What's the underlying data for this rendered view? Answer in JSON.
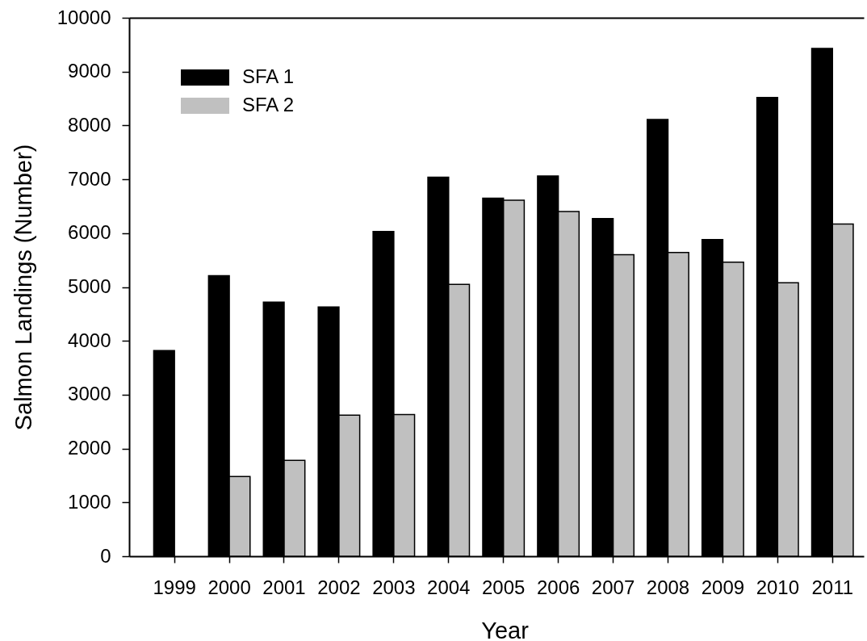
{
  "chart_data": {
    "type": "bar",
    "xlabel": "Year",
    "ylabel": "Salmon Landings (Number)",
    "categories": [
      "1999",
      "2000",
      "2001",
      "2002",
      "2003",
      "2004",
      "2005",
      "2006",
      "2007",
      "2008",
      "2009",
      "2010",
      "2011"
    ],
    "series": [
      {
        "name": "SFA 1",
        "color": "#000000",
        "values": [
          3820,
          5210,
          4720,
          4630,
          6030,
          7040,
          6650,
          7060,
          6270,
          8110,
          5880,
          8520,
          9430
        ]
      },
      {
        "name": "SFA 2",
        "color": "#c0c0c0",
        "values": [
          null,
          1480,
          1780,
          2620,
          2630,
          5050,
          6610,
          6400,
          5600,
          5640,
          5460,
          5080,
          6170
        ]
      }
    ],
    "ylim": [
      0,
      10000
    ],
    "yticks": [
      0,
      1000,
      2000,
      3000,
      4000,
      5000,
      6000,
      7000,
      8000,
      9000,
      10000
    ],
    "legend": "top left"
  }
}
